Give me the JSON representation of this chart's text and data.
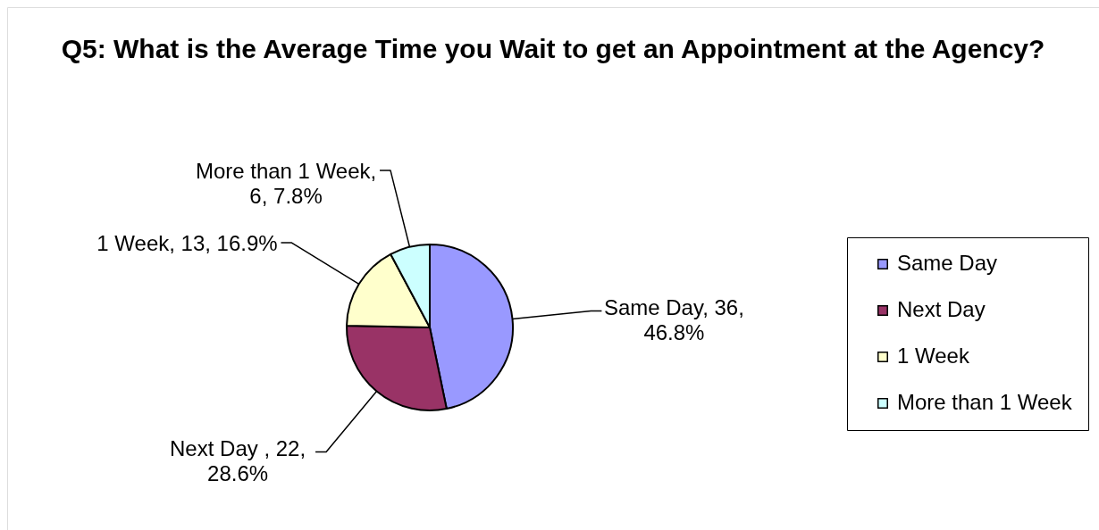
{
  "chart_data": {
    "type": "pie",
    "title": "Q5: What is the Average Time you Wait to get an Appointment at the Agency?",
    "categories": [
      "Same Day",
      "Next Day",
      "1 Week",
      "More than 1 Week"
    ],
    "values": [
      36,
      22,
      13,
      6
    ],
    "colors": [
      "#9999ff",
      "#993366",
      "#ffffcc",
      "#ccffff"
    ],
    "value_labels": [
      "Same Day, 36,\n46.8%",
      "Next Day , 22,\n28.6%",
      "1 Week, 13, 16.9%",
      "More than 1 Week,\n6, 7.8%"
    ],
    "legend": "right"
  }
}
